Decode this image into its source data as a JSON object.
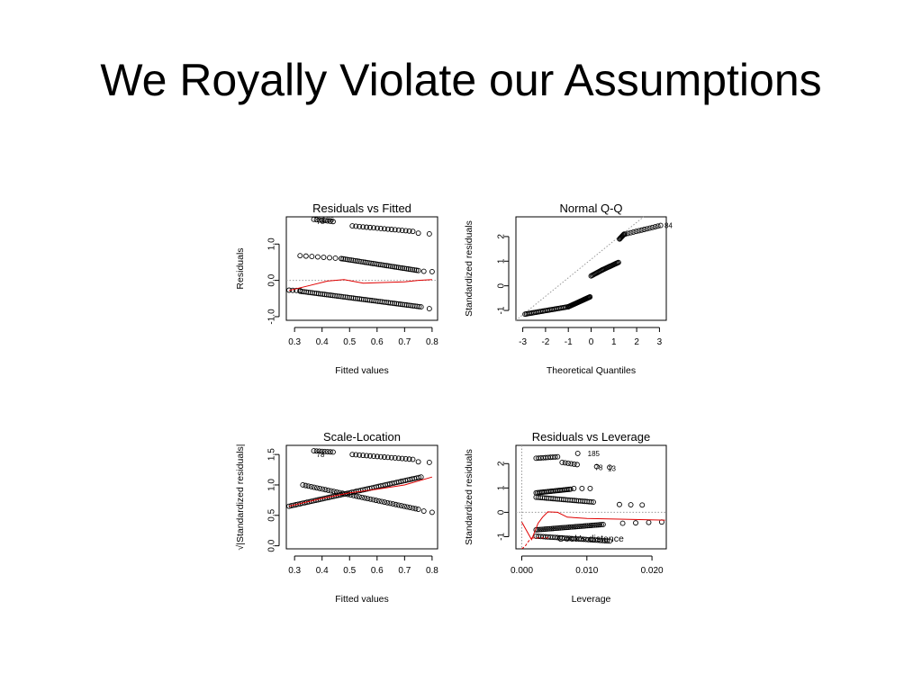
{
  "slide": {
    "title": "We Royally Violate our Assumptions"
  },
  "colors": {
    "points": "#000000",
    "smooth": "#e00000",
    "reference": "#999999"
  },
  "chart_data": [
    {
      "type": "scatter",
      "title": "Residuals vs Fitted",
      "xlabel": "Fitted values",
      "ylabel": "Residuals",
      "xticks": [
        0.3,
        0.4,
        0.5,
        0.6,
        0.7,
        0.8
      ],
      "xtick_labels": [
        "0.3",
        "0.4",
        "0.5",
        "0.6",
        "0.7",
        "0.8"
      ],
      "yticks": [
        -1.0,
        0.0,
        1.0
      ],
      "ytick_labels": [
        "-1.0",
        "0.0",
        "1.0"
      ],
      "xlim": [
        0.27,
        0.82
      ],
      "ylim": [
        -1.1,
        1.75
      ],
      "reference_line": {
        "y": 0
      },
      "point_bands": [
        {
          "x": [
            0.37,
            0.44
          ],
          "y": [
            1.68,
            1.62
          ],
          "n": 8
        },
        {
          "x": [
            0.51,
            0.73
          ],
          "y": [
            1.5,
            1.35
          ],
          "n": 18
        },
        {
          "x": [
            0.75,
            0.79
          ],
          "y": [
            1.3,
            1.28
          ],
          "n": 2
        },
        {
          "x": [
            0.32,
            0.47
          ],
          "y": [
            0.68,
            0.6
          ],
          "n": 8
        },
        {
          "x": [
            0.47,
            0.75
          ],
          "y": [
            0.6,
            0.27
          ],
          "n": 40
        },
        {
          "x": [
            0.77,
            0.8
          ],
          "y": [
            0.25,
            0.24
          ],
          "n": 2
        },
        {
          "x": [
            0.28,
            0.32
          ],
          "y": [
            -0.27,
            -0.28
          ],
          "n": 4
        },
        {
          "x": [
            0.32,
            0.76
          ],
          "y": [
            -0.3,
            -0.73
          ],
          "n": 60
        },
        {
          "x": [
            0.79,
            0.79
          ],
          "y": [
            -0.78,
            -0.78
          ],
          "n": 1
        }
      ],
      "smooth": {
        "x": [
          0.28,
          0.35,
          0.42,
          0.48,
          0.55,
          0.62,
          0.7,
          0.75,
          0.8
        ],
        "y": [
          -0.28,
          -0.15,
          -0.02,
          0.02,
          -0.08,
          -0.06,
          -0.04,
          0.0,
          0.02
        ]
      },
      "point_labels": [
        {
          "text": "186",
          "x": 0.39,
          "y": 1.68
        },
        {
          "text": "78",
          "x": 0.37,
          "y": 1.62
        }
      ]
    },
    {
      "type": "scatter",
      "title": "Normal Q-Q",
      "xlabel": "Theoretical Quantiles",
      "ylabel": "Standardized residuals",
      "xticks": [
        -3,
        -2,
        -1,
        0,
        1,
        2,
        3
      ],
      "xtick_labels": [
        "-3",
        "-2",
        "-1",
        "0",
        "1",
        "2",
        "3"
      ],
      "yticks": [
        -1,
        0,
        1,
        2
      ],
      "ytick_labels": [
        "-1",
        "0",
        "1",
        "2"
      ],
      "xlim": [
        -3.3,
        3.3
      ],
      "ylim": [
        -1.4,
        2.8
      ],
      "reference_line": {
        "x": [
          -3.3,
          2.3
        ],
        "y": [
          -1.4,
          2.8
        ]
      },
      "point_segments": [
        {
          "x": [
            -2.9,
            -1.0
          ],
          "y": [
            -1.15,
            -0.85
          ],
          "n": 30
        },
        {
          "x": [
            -1.0,
            -0.05
          ],
          "y": [
            -0.85,
            -0.45
          ],
          "n": 30
        },
        {
          "x": [
            0.0,
            0.5
          ],
          "y": [
            0.4,
            0.65
          ],
          "n": 12
        },
        {
          "x": [
            0.5,
            1.2
          ],
          "y": [
            0.65,
            0.95
          ],
          "n": 18
        },
        {
          "x": [
            1.25,
            1.45
          ],
          "y": [
            1.9,
            2.1
          ],
          "n": 8
        },
        {
          "x": [
            1.5,
            3.05
          ],
          "y": [
            2.1,
            2.45
          ],
          "n": 14
        }
      ],
      "point_labels": [
        {
          "text": "84",
          "x": 3.1,
          "y": 2.45
        }
      ]
    },
    {
      "type": "scatter",
      "title": "Scale-Location",
      "xlabel": "Fitted values",
      "ylabel": "√|Standardized residuals|",
      "xticks": [
        0.3,
        0.4,
        0.5,
        0.6,
        0.7,
        0.8
      ],
      "xtick_labels": [
        "0.3",
        "0.4",
        "0.5",
        "0.6",
        "0.7",
        "0.8"
      ],
      "yticks": [
        0.0,
        0.5,
        1.0,
        1.5
      ],
      "ytick_labels": [
        "0.0",
        "0.5",
        "1.0",
        "1.5"
      ],
      "xlim": [
        0.27,
        0.82
      ],
      "ylim": [
        -0.05,
        1.65
      ],
      "point_bands": [
        {
          "x": [
            0.37,
            0.44
          ],
          "y": [
            1.56,
            1.54
          ],
          "n": 8
        },
        {
          "x": [
            0.51,
            0.73
          ],
          "y": [
            1.5,
            1.42
          ],
          "n": 18
        },
        {
          "x": [
            0.75,
            0.79
          ],
          "y": [
            1.38,
            1.37
          ],
          "n": 2
        },
        {
          "x": [
            0.28,
            0.76
          ],
          "y": [
            0.65,
            1.13
          ],
          "n": 60
        },
        {
          "x": [
            0.33,
            0.75
          ],
          "y": [
            1.0,
            0.6
          ],
          "n": 42
        },
        {
          "x": [
            0.77,
            0.8
          ],
          "y": [
            0.57,
            0.55
          ],
          "n": 2
        }
      ],
      "smooth": {
        "x": [
          0.28,
          0.4,
          0.5,
          0.6,
          0.7,
          0.8
        ],
        "y": [
          0.65,
          0.78,
          0.87,
          0.93,
          1.0,
          1.13
        ]
      },
      "point_labels": [
        {
          "text": "78",
          "x": 0.37,
          "y": 1.5
        }
      ]
    },
    {
      "type": "scatter",
      "title": "Residuals vs Leverage",
      "xlabel": "Leverage",
      "ylabel": "Standardized residuals",
      "xticks": [
        0.0,
        0.01,
        0.02
      ],
      "xtick_labels": [
        "0.000",
        "0.010",
        "0.020"
      ],
      "yticks": [
        -1,
        0,
        1,
        2
      ],
      "ytick_labels": [
        "-1",
        "0",
        "1",
        "2"
      ],
      "xlim": [
        -0.0009,
        0.0222
      ],
      "ylim": [
        -1.5,
        2.75
      ],
      "reference_lines": {
        "x": 0,
        "y": 0
      },
      "point_bands": [
        {
          "x": [
            0.0022,
            0.0055
          ],
          "y": [
            2.22,
            2.28
          ],
          "n": 10
        },
        {
          "x": [
            0.0062,
            0.0085
          ],
          "y": [
            2.05,
            1.96
          ],
          "n": 6
        },
        {
          "x": [
            0.0086,
            0.0086
          ],
          "y": [
            2.42,
            2.42
          ],
          "n": 1
        },
        {
          "x": [
            0.0115,
            0.0115
          ],
          "y": [
            1.88,
            1.88
          ],
          "n": 1
        },
        {
          "x": [
            0.0135,
            0.0135
          ],
          "y": [
            1.85,
            1.85
          ],
          "n": 1
        },
        {
          "x": [
            0.0022,
            0.0075
          ],
          "y": [
            0.8,
            0.95
          ],
          "n": 24
        },
        {
          "x": [
            0.008,
            0.0105
          ],
          "y": [
            0.98,
            0.98
          ],
          "n": 3
        },
        {
          "x": [
            0.0022,
            0.011
          ],
          "y": [
            0.62,
            0.42
          ],
          "n": 28
        },
        {
          "x": [
            0.015,
            0.0185
          ],
          "y": [
            0.32,
            0.3
          ],
          "n": 3
        },
        {
          "x": [
            0.0022,
            0.0125
          ],
          "y": [
            -0.72,
            -0.5
          ],
          "n": 40
        },
        {
          "x": [
            0.0155,
            0.0215
          ],
          "y": [
            -0.45,
            -0.4
          ],
          "n": 4
        },
        {
          "x": [
            0.0022,
            0.0135
          ],
          "y": [
            -0.98,
            -1.18
          ],
          "n": 32
        }
      ],
      "smooth": {
        "x": [
          0.0,
          0.0015,
          0.0025,
          0.0032,
          0.004,
          0.0055,
          0.007,
          0.01,
          0.015,
          0.022
        ],
        "y": [
          -0.4,
          -1.12,
          -0.45,
          -0.2,
          0.02,
          0.0,
          -0.2,
          -0.25,
          -0.28,
          -0.32
        ]
      },
      "cooks_distance": {
        "x": [
          0.0,
          0.0005,
          0.001,
          0.0015
        ],
        "y": [
          -1.5,
          -1.4,
          -1.2,
          -1.05
        ],
        "label": "Cook's distance"
      },
      "point_labels": [
        {
          "text": "185",
          "x": 0.0097,
          "y": 2.42
        },
        {
          "text": "78",
          "x": 0.0108,
          "y": 1.85
        },
        {
          "text": "13",
          "x": 0.0128,
          "y": 1.8
        }
      ]
    }
  ]
}
